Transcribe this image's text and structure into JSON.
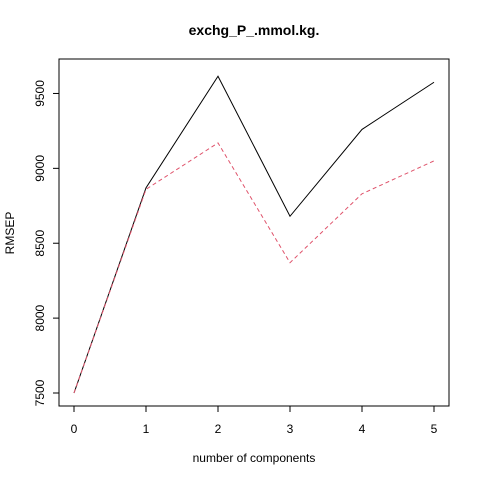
{
  "chart_data": {
    "type": "line",
    "title": "exchg_P_.mmol.kg.",
    "xlabel": "number of components",
    "ylabel": "RMSEP",
    "x": [
      0,
      1,
      2,
      3,
      4,
      5
    ],
    "xlim": [
      0,
      5
    ],
    "ylim": [
      7500,
      9650
    ],
    "xticks": [
      0,
      1,
      2,
      3,
      4,
      5
    ],
    "yticks": [
      7500,
      8000,
      8500,
      9000,
      9500
    ],
    "grid": false,
    "legend": "none",
    "series": [
      {
        "values": [
          7500,
          8870,
          9615,
          8680,
          9260,
          9575
        ],
        "color": "#000000",
        "style": "solid"
      },
      {
        "values": [
          7500,
          8860,
          9170,
          8370,
          8830,
          9050
        ],
        "color": "#df536b",
        "style": "dashed"
      }
    ]
  }
}
